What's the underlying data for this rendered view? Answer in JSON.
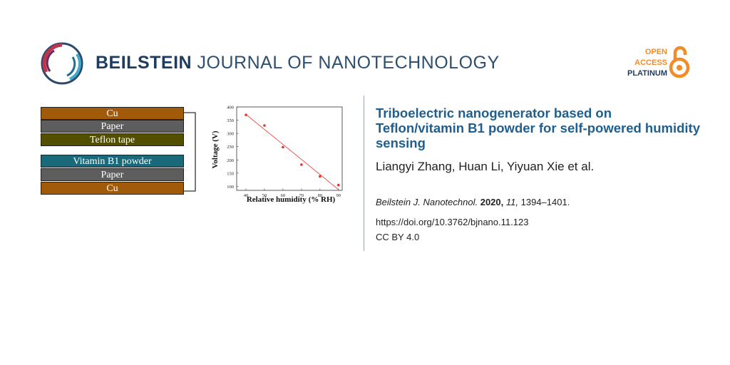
{
  "header": {
    "journal_bold": "BEILSTEIN",
    "journal_rest": "JOURNAL OF NANOTECHNOLOGY",
    "oa_line1": "OPEN",
    "oa_line2": "ACCESS",
    "oa_line3": "PLATINUM",
    "logo_icon": "beilstein-circle-logo",
    "oa_icon": "open-access-lock-icon",
    "colors": {
      "brand_blue": "#1f3c5c",
      "oa_orange": "#f28c28",
      "title_blue": "#1f5f8f"
    }
  },
  "figure": {
    "layers_top": [
      "Cu",
      "Paper",
      "Teflon tape"
    ],
    "layers_bottom": [
      "Vitamin B1 powder",
      "Paper",
      "Cu"
    ],
    "layer_colors": {
      "cu": "#a05a0a",
      "paper": "#5d5d5d",
      "teflon": "#525000",
      "vitb1": "#19697a"
    }
  },
  "chart_data": {
    "type": "scatter",
    "xlabel": "Relative humidity (% RH)",
    "ylabel": "Voltage (V)",
    "xlim": [
      35,
      92
    ],
    "ylim": [
      85,
      400
    ],
    "xticks": [
      40,
      50,
      60,
      70,
      80,
      90
    ],
    "yticks": [
      100,
      150,
      200,
      250,
      300,
      350,
      400
    ],
    "series": [
      {
        "x": [
          40,
          50,
          60,
          70,
          80,
          90
        ],
        "y": [
          370,
          330,
          248,
          182,
          138,
          105
        ]
      }
    ],
    "fit_line": {
      "x": [
        40,
        90
      ],
      "y": [
        372,
        88
      ]
    },
    "point_color": "#e8332a",
    "fit_color": "#e8332a"
  },
  "article": {
    "title": "Triboelectric nanogenerator based on Teflon/vitamin B1 powder for self-powered humidity sensing",
    "authors": "Liangyi Zhang, Huan Li, Yiyuan Xie et al.",
    "journal_abbrev": "Beilstein J. Nanotechnol.",
    "year": "2020,",
    "volume": "11,",
    "pages": "1394–1401.",
    "doi": "https://doi.org/10.3762/bjnano.11.123",
    "license": "CC BY 4.0"
  }
}
